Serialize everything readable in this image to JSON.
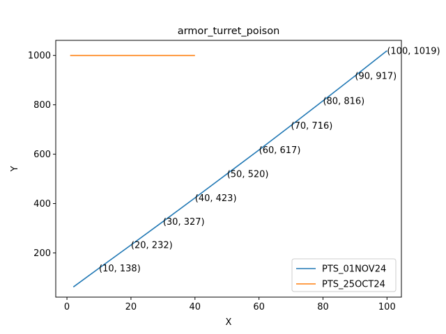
{
  "chart_data": {
    "type": "line",
    "title": "armor_turret_poison",
    "xlabel": "X",
    "ylabel": "Y",
    "xlim": [
      -3.5,
      104.5
    ],
    "ylim": [
      21,
      1061
    ],
    "xticks": [
      0,
      20,
      40,
      60,
      80,
      100
    ],
    "yticks": [
      200,
      400,
      600,
      800,
      1000
    ],
    "grid": false,
    "legend_position": "lower-right",
    "series": [
      {
        "name": "PTS_01NOV24",
        "color": "#1f77b4",
        "x": [
          2,
          10,
          20,
          30,
          40,
          50,
          60,
          70,
          80,
          90,
          100
        ],
        "y": [
          62,
          138,
          232,
          327,
          423,
          520,
          617,
          716,
          816,
          917,
          1019
        ]
      },
      {
        "name": "PTS_25OCT24",
        "color": "#ff7f0e",
        "x": [
          1,
          40
        ],
        "y": [
          1000,
          1000
        ]
      }
    ],
    "annotations": [
      {
        "x": 10,
        "y": 138,
        "text": "(10, 138)"
      },
      {
        "x": 20,
        "y": 232,
        "text": "(20, 232)"
      },
      {
        "x": 30,
        "y": 327,
        "text": "(30, 327)"
      },
      {
        "x": 40,
        "y": 423,
        "text": "(40, 423)"
      },
      {
        "x": 50,
        "y": 520,
        "text": "(50, 520)"
      },
      {
        "x": 60,
        "y": 617,
        "text": "(60, 617)"
      },
      {
        "x": 70,
        "y": 716,
        "text": "(70, 716)"
      },
      {
        "x": 80,
        "y": 816,
        "text": "(80, 816)"
      },
      {
        "x": 90,
        "y": 917,
        "text": "(90, 917)"
      },
      {
        "x": 100,
        "y": 1019,
        "text": "(100, 1019)"
      }
    ]
  }
}
